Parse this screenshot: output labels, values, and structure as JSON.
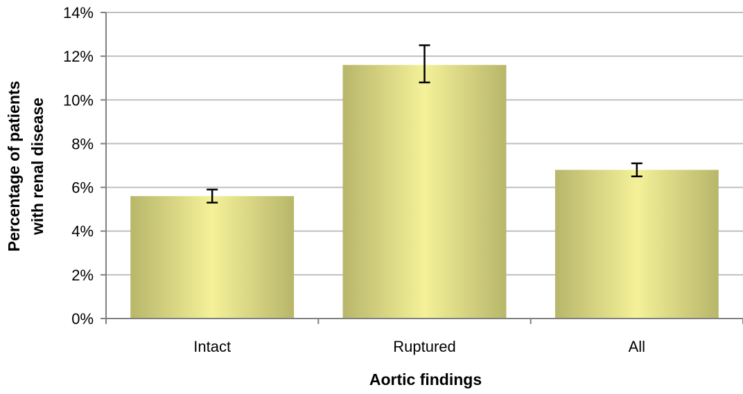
{
  "chart_data": {
    "type": "bar",
    "categories": [
      "Intact",
      "Ruptured",
      "All"
    ],
    "values": [
      5.6,
      11.6,
      6.8
    ],
    "error_bars": [
      {
        "low": 5.3,
        "high": 5.9
      },
      {
        "low": 10.8,
        "high": 12.5
      },
      {
        "low": 6.5,
        "high": 7.1
      }
    ],
    "xlabel": "Aortic findings",
    "ylabel_lines": [
      "Percentage of patients",
      "with renal disease"
    ],
    "ylim": [
      0,
      14
    ],
    "yticks": [
      0,
      2,
      4,
      6,
      8,
      10,
      12,
      14
    ],
    "ytick_labels": [
      "0%",
      "2%",
      "4%",
      "6%",
      "8%",
      "10%",
      "12%",
      "14%"
    ],
    "grid": true,
    "legend": "none",
    "colors": {
      "bar_edge": "#b8b66a",
      "bar_center": "#f4f199",
      "grid": "#bfbfbf",
      "axis": "#808080",
      "error_bar": "#000000"
    }
  }
}
